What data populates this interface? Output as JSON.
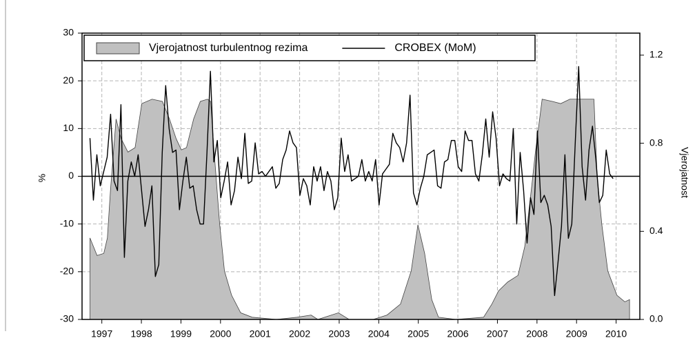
{
  "chart_data": {
    "type": "combo",
    "ylabel": "%",
    "y2label": "Vjerojatnost",
    "xlim": [
      1997,
      2011.1
    ],
    "ylim": [
      -30,
      30
    ],
    "y2lim": [
      0,
      1.3
    ],
    "xticks": [
      {
        "value": 1997.5,
        "label": "1997"
      },
      {
        "value": 1998.5,
        "label": "1998"
      },
      {
        "value": 1999.5,
        "label": "1999"
      },
      {
        "value": 2000.5,
        "label": "2000"
      },
      {
        "value": 2001.5,
        "label": "2001"
      },
      {
        "value": 2002.5,
        "label": "2002"
      },
      {
        "value": 2003.5,
        "label": "2003"
      },
      {
        "value": 2004.5,
        "label": "2004"
      },
      {
        "value": 2005.5,
        "label": "2005"
      },
      {
        "value": 2006.5,
        "label": "2006"
      },
      {
        "value": 2007.5,
        "label": "2007"
      },
      {
        "value": 2008.5,
        "label": "2008"
      },
      {
        "value": 2009.5,
        "label": "2009"
      },
      {
        "value": 2010.5,
        "label": "2010"
      }
    ],
    "yticks": [
      -30,
      -20,
      -10,
      0,
      10,
      20,
      30
    ],
    "y2ticks": [
      {
        "value": 0,
        "label": "0.0"
      },
      0.4,
      0.8,
      1.2
    ],
    "hline": 0,
    "grid": true,
    "legend": "top-left",
    "series": [
      {
        "name": "Vjerojatnost turbulentnog rezima",
        "type": "area",
        "axis": "y2",
        "color": "#c0c0c0",
        "x": [
          1997.2,
          1997.38,
          1997.55,
          1997.64,
          1997.72,
          1997.86,
          1997.99,
          1998.16,
          1998.34,
          1998.51,
          1998.77,
          1999.03,
          1999.21,
          1999.38,
          1999.51,
          1999.64,
          1999.82,
          1999.99,
          2000.17,
          2000.25,
          2000.34,
          2000.48,
          2000.6,
          2000.78,
          2001.01,
          2001.3,
          2001.91,
          2002.44,
          2002.79,
          2002.96,
          2003.48,
          2003.75,
          2004.36,
          2004.71,
          2005.05,
          2005.32,
          2005.49,
          2005.66,
          2005.84,
          2006.01,
          2006.45,
          2007.15,
          2007.36,
          2007.53,
          2007.76,
          2008.02,
          2008.19,
          2008.37,
          2008.46,
          2008.63,
          2008.89,
          2009.1,
          2009.33,
          2009.59,
          2009.94,
          2010.02,
          2010.14,
          2010.29,
          2010.52,
          2010.72,
          2010.84
        ],
        "values": [
          0.37,
          0.29,
          0.3,
          0.37,
          0.59,
          0.91,
          0.82,
          0.76,
          0.78,
          0.98,
          1.0,
          0.99,
          0.91,
          0.82,
          0.77,
          0.78,
          0.91,
          0.99,
          1.0,
          0.99,
          0.76,
          0.43,
          0.22,
          0.11,
          0.03,
          0.01,
          0.0,
          0.01,
          0.02,
          0.0,
          0.03,
          0.0,
          0.0,
          0.02,
          0.07,
          0.22,
          0.43,
          0.3,
          0.09,
          0.01,
          0.0,
          0.01,
          0.07,
          0.13,
          0.17,
          0.2,
          0.33,
          0.61,
          0.76,
          1.0,
          0.99,
          0.98,
          1.0,
          1.0,
          1.0,
          0.65,
          0.43,
          0.22,
          0.11,
          0.08,
          0.09
        ]
      },
      {
        "name": "CROBEX (MoM)",
        "type": "line",
        "color": "#000000",
        "x": [
          1997.2,
          1997.287,
          1997.374,
          1997.461,
          1997.548,
          1997.635,
          1997.722,
          1997.809,
          1997.896,
          1997.983,
          1998.07,
          1998.157,
          1998.244,
          1998.331,
          1998.418,
          1998.505,
          1998.592,
          1998.679,
          1998.766,
          1998.853,
          1998.94,
          1999.027,
          1999.114,
          1999.201,
          1999.288,
          1999.375,
          1999.462,
          1999.549,
          1999.636,
          1999.723,
          1999.81,
          1999.897,
          1999.984,
          2000.071,
          2000.158,
          2000.245,
          2000.332,
          2000.419,
          2000.506,
          2000.593,
          2000.68,
          2000.767,
          2000.854,
          2000.941,
          2001.028,
          2001.115,
          2001.202,
          2001.289,
          2001.376,
          2001.463,
          2001.55,
          2001.637,
          2001.724,
          2001.811,
          2001.898,
          2001.985,
          2002.072,
          2002.159,
          2002.246,
          2002.333,
          2002.42,
          2002.507,
          2002.594,
          2002.681,
          2002.768,
          2002.855,
          2002.942,
          2003.029,
          2003.116,
          2003.203,
          2003.29,
          2003.377,
          2003.464,
          2003.551,
          2003.638,
          2003.725,
          2003.812,
          2003.899,
          2003.986,
          2004.073,
          2004.16,
          2004.247,
          2004.334,
          2004.421,
          2004.508,
          2004.595,
          2004.682,
          2004.769,
          2004.856,
          2004.943,
          2005.03,
          2005.117,
          2005.204,
          2005.291,
          2005.378,
          2005.465,
          2005.552,
          2005.639,
          2005.726,
          2005.813,
          2005.9,
          2005.987,
          2006.074,
          2006.161,
          2006.248,
          2006.335,
          2006.422,
          2006.509,
          2006.596,
          2006.683,
          2006.77,
          2006.857,
          2006.944,
          2007.031,
          2007.118,
          2007.205,
          2007.292,
          2007.379,
          2007.466,
          2007.553,
          2007.64,
          2007.727,
          2007.814,
          2007.901,
          2007.988,
          2008.075,
          2008.162,
          2008.249,
          2008.336,
          2008.423,
          2008.51,
          2008.597,
          2008.684,
          2008.771,
          2008.858,
          2008.945,
          2009.032,
          2009.119,
          2009.206,
          2009.293,
          2009.38,
          2009.467,
          2009.554,
          2009.641,
          2009.728,
          2009.815,
          2009.902,
          2009.989,
          2010.076,
          2010.163,
          2010.25,
          2010.337,
          2010.424
        ],
        "values": [
          8,
          -5,
          4.5,
          -2,
          1,
          4,
          13,
          -1,
          -3,
          15,
          -17,
          -1,
          3,
          0,
          4.5,
          -3,
          -10.5,
          -7,
          -2,
          -21,
          -18.5,
          5,
          19,
          10,
          5,
          5.5,
          -7,
          -1,
          4,
          -2.5,
          -2,
          -7,
          -10,
          -10,
          5,
          22,
          3,
          7.5,
          -4.5,
          -1,
          3,
          -6,
          -3,
          4,
          -0.5,
          9,
          -1.5,
          -1,
          7,
          0.5,
          1,
          0,
          1,
          2,
          -2.5,
          -1.5,
          3.5,
          5.5,
          9.5,
          7,
          6,
          -4,
          -0.5,
          -2,
          -6,
          2,
          -1,
          2,
          -3,
          1,
          -1,
          -7,
          -4.5,
          8,
          1,
          4.5,
          -1,
          -0.5,
          0,
          3.5,
          -1,
          1,
          -1,
          3.5,
          -6,
          0.5,
          1.5,
          2.5,
          9,
          7,
          6,
          3,
          7,
          17,
          -3.5,
          -6,
          -2.5,
          0,
          4.5,
          5,
          5.5,
          -2,
          -2.5,
          3,
          3.5,
          7.5,
          7.5,
          2,
          1,
          9.5,
          7.5,
          7.5,
          0.5,
          -1,
          4.5,
          12,
          4,
          13.5,
          8,
          -2,
          0.5,
          -0.5,
          -1,
          10,
          -10,
          5,
          -3,
          -14,
          -4.5,
          -8,
          9.5,
          -5.5,
          -4,
          -6,
          -10.5,
          -25,
          -18,
          -10.5,
          4.5,
          -13,
          -10,
          7,
          23,
          2,
          -5,
          5.5,
          10.5,
          3.5,
          -5.5,
          -4,
          5.5,
          0.5,
          -0.5
        ]
      }
    ]
  }
}
